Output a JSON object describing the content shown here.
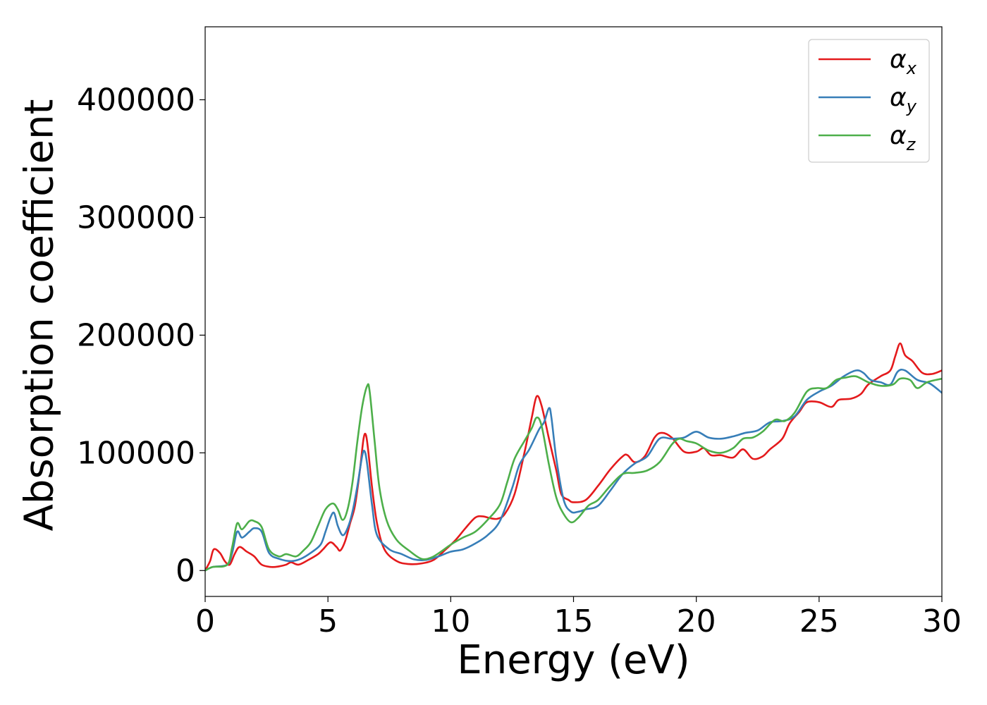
{
  "chart_data": {
    "type": "line",
    "title": "",
    "xlabel": "Energy (eV)",
    "ylabel": "Absorption coefficient",
    "xlim": [
      0,
      30
    ],
    "ylim": [
      -22000,
      462000
    ],
    "xticks": [
      0,
      5,
      10,
      15,
      20,
      25,
      30
    ],
    "yticks": [
      0,
      100000,
      200000,
      300000,
      400000
    ],
    "xtick_labels": [
      "0",
      "5",
      "10",
      "15",
      "20",
      "25",
      "30"
    ],
    "ytick_labels": [
      "0",
      "100000",
      "200000",
      "300000",
      "400000"
    ],
    "grid": false,
    "legend_position": "top-right",
    "series": [
      {
        "name": "α",
        "subscript": "x",
        "color": "#e41a1c",
        "points": [
          [
            0,
            0
          ],
          [
            0.2,
            8000
          ],
          [
            0.35,
            18000
          ],
          [
            0.6,
            15000
          ],
          [
            0.8,
            8000
          ],
          [
            1.0,
            5000
          ],
          [
            1.2,
            14000
          ],
          [
            1.4,
            20000
          ],
          [
            1.7,
            16000
          ],
          [
            2.0,
            12000
          ],
          [
            2.3,
            5000
          ],
          [
            2.7,
            3000
          ],
          [
            3.0,
            3500
          ],
          [
            3.3,
            5000
          ],
          [
            3.5,
            7000
          ],
          [
            3.8,
            5000
          ],
          [
            4.2,
            9000
          ],
          [
            4.6,
            14000
          ],
          [
            4.8,
            18000
          ],
          [
            5.1,
            24000
          ],
          [
            5.35,
            20000
          ],
          [
            5.5,
            17000
          ],
          [
            5.7,
            25000
          ],
          [
            5.9,
            40000
          ],
          [
            6.1,
            55000
          ],
          [
            6.3,
            85000
          ],
          [
            6.45,
            112000
          ],
          [
            6.55,
            115000
          ],
          [
            6.65,
            100000
          ],
          [
            6.8,
            70000
          ],
          [
            7.0,
            40000
          ],
          [
            7.3,
            18000
          ],
          [
            7.8,
            8000
          ],
          [
            8.3,
            5500
          ],
          [
            8.8,
            6000
          ],
          [
            9.3,
            9000
          ],
          [
            9.8,
            18000
          ],
          [
            10.2,
            26000
          ],
          [
            10.6,
            36000
          ],
          [
            11.0,
            45000
          ],
          [
            11.3,
            46000
          ],
          [
            11.6,
            44500
          ],
          [
            11.9,
            44000
          ],
          [
            12.2,
            48000
          ],
          [
            12.6,
            65000
          ],
          [
            13.0,
            100000
          ],
          [
            13.3,
            130000
          ],
          [
            13.5,
            148000
          ],
          [
            13.7,
            140000
          ],
          [
            14.0,
            112000
          ],
          [
            14.3,
            85000
          ],
          [
            14.5,
            65000
          ],
          [
            14.8,
            60000
          ],
          [
            15.0,
            58000
          ],
          [
            15.5,
            60000
          ],
          [
            16.0,
            72000
          ],
          [
            16.5,
            86000
          ],
          [
            17.0,
            97000
          ],
          [
            17.2,
            98000
          ],
          [
            17.5,
            92000
          ],
          [
            17.9,
            97000
          ],
          [
            18.3,
            113000
          ],
          [
            18.6,
            117000
          ],
          [
            19.0,
            113000
          ],
          [
            19.5,
            101000
          ],
          [
            20.0,
            101000
          ],
          [
            20.3,
            104000
          ],
          [
            20.6,
            98000
          ],
          [
            21.0,
            98000
          ],
          [
            21.5,
            96000
          ],
          [
            21.9,
            103000
          ],
          [
            22.3,
            95000
          ],
          [
            22.7,
            97000
          ],
          [
            23.0,
            103000
          ],
          [
            23.5,
            112000
          ],
          [
            23.8,
            125000
          ],
          [
            24.2,
            135000
          ],
          [
            24.5,
            143000
          ],
          [
            25.0,
            143000
          ],
          [
            25.5,
            139000
          ],
          [
            25.8,
            145000
          ],
          [
            26.3,
            146000
          ],
          [
            26.7,
            150000
          ],
          [
            27.0,
            158000
          ],
          [
            27.5,
            165000
          ],
          [
            27.9,
            170000
          ],
          [
            28.1,
            182000
          ],
          [
            28.3,
            193000
          ],
          [
            28.5,
            183000
          ],
          [
            28.8,
            178000
          ],
          [
            29.2,
            168000
          ],
          [
            29.6,
            167000
          ],
          [
            30.0,
            170000
          ]
        ]
      },
      {
        "name": "α",
        "subscript": "y",
        "color": "#377eb8",
        "points": [
          [
            0,
            0
          ],
          [
            0.3,
            3000
          ],
          [
            0.9,
            5000
          ],
          [
            1.1,
            15000
          ],
          [
            1.3,
            33000
          ],
          [
            1.5,
            28000
          ],
          [
            1.8,
            33000
          ],
          [
            2.0,
            36000
          ],
          [
            2.3,
            33000
          ],
          [
            2.6,
            15000
          ],
          [
            3.0,
            10000
          ],
          [
            3.5,
            8000
          ],
          [
            3.9,
            10000
          ],
          [
            4.3,
            15000
          ],
          [
            4.7,
            22000
          ],
          [
            4.9,
            33000
          ],
          [
            5.1,
            45000
          ],
          [
            5.25,
            49000
          ],
          [
            5.4,
            38000
          ],
          [
            5.6,
            30000
          ],
          [
            5.8,
            36000
          ],
          [
            6.0,
            50000
          ],
          [
            6.2,
            72000
          ],
          [
            6.4,
            98000
          ],
          [
            6.5,
            101000
          ],
          [
            6.6,
            90000
          ],
          [
            6.8,
            55000
          ],
          [
            7.0,
            30000
          ],
          [
            7.5,
            18000
          ],
          [
            8.0,
            14000
          ],
          [
            8.5,
            9500
          ],
          [
            9.0,
            9000
          ],
          [
            9.5,
            12000
          ],
          [
            10.0,
            16000
          ],
          [
            10.5,
            18000
          ],
          [
            11.0,
            23000
          ],
          [
            11.5,
            30000
          ],
          [
            12.0,
            42000
          ],
          [
            12.5,
            70000
          ],
          [
            12.8,
            90000
          ],
          [
            13.2,
            103000
          ],
          [
            13.6,
            120000
          ],
          [
            13.8,
            126000
          ],
          [
            14.0,
            138000
          ],
          [
            14.1,
            130000
          ],
          [
            14.3,
            95000
          ],
          [
            14.6,
            60000
          ],
          [
            14.9,
            50000
          ],
          [
            15.2,
            50000
          ],
          [
            15.5,
            52000
          ],
          [
            16.0,
            55000
          ],
          [
            16.5,
            68000
          ],
          [
            17.0,
            82000
          ],
          [
            17.5,
            91000
          ],
          [
            18.0,
            97000
          ],
          [
            18.5,
            112000
          ],
          [
            19.0,
            112000
          ],
          [
            19.5,
            113000
          ],
          [
            20.0,
            118000
          ],
          [
            20.5,
            113000
          ],
          [
            21.0,
            112000
          ],
          [
            21.5,
            114000
          ],
          [
            22.0,
            117000
          ],
          [
            22.5,
            119000
          ],
          [
            23.0,
            126000
          ],
          [
            23.5,
            127000
          ],
          [
            24.0,
            131000
          ],
          [
            24.5,
            145000
          ],
          [
            25.0,
            152000
          ],
          [
            25.5,
            157000
          ],
          [
            26.0,
            165000
          ],
          [
            26.5,
            170000
          ],
          [
            26.8,
            168000
          ],
          [
            27.1,
            162000
          ],
          [
            27.5,
            160000
          ],
          [
            27.9,
            158000
          ],
          [
            28.2,
            169000
          ],
          [
            28.5,
            170000
          ],
          [
            29.0,
            162000
          ],
          [
            29.5,
            159000
          ],
          [
            30.0,
            151000
          ]
        ]
      },
      {
        "name": "α",
        "subscript": "z",
        "color": "#4daf4a",
        "points": [
          [
            0,
            0
          ],
          [
            0.3,
            3000
          ],
          [
            0.9,
            5000
          ],
          [
            1.1,
            20000
          ],
          [
            1.3,
            40000
          ],
          [
            1.5,
            35000
          ],
          [
            1.8,
            42000
          ],
          [
            2.0,
            42000
          ],
          [
            2.3,
            37000
          ],
          [
            2.6,
            18000
          ],
          [
            3.0,
            12000
          ],
          [
            3.3,
            14000
          ],
          [
            3.7,
            12000
          ],
          [
            4.0,
            17000
          ],
          [
            4.3,
            24000
          ],
          [
            4.6,
            38000
          ],
          [
            4.9,
            52000
          ],
          [
            5.2,
            57000
          ],
          [
            5.4,
            52000
          ],
          [
            5.6,
            43000
          ],
          [
            5.8,
            52000
          ],
          [
            6.0,
            75000
          ],
          [
            6.2,
            110000
          ],
          [
            6.4,
            140000
          ],
          [
            6.6,
            157000
          ],
          [
            6.7,
            152000
          ],
          [
            6.9,
            110000
          ],
          [
            7.1,
            70000
          ],
          [
            7.4,
            42000
          ],
          [
            7.8,
            26000
          ],
          [
            8.3,
            17000
          ],
          [
            8.8,
            10000
          ],
          [
            9.2,
            11000
          ],
          [
            9.6,
            16000
          ],
          [
            10.0,
            22000
          ],
          [
            10.5,
            28000
          ],
          [
            11.0,
            33000
          ],
          [
            11.5,
            43000
          ],
          [
            12.0,
            56000
          ],
          [
            12.3,
            75000
          ],
          [
            12.6,
            95000
          ],
          [
            13.0,
            110000
          ],
          [
            13.3,
            121000
          ],
          [
            13.5,
            130000
          ],
          [
            13.7,
            123000
          ],
          [
            14.0,
            90000
          ],
          [
            14.3,
            62000
          ],
          [
            14.6,
            48000
          ],
          [
            14.9,
            41000
          ],
          [
            15.2,
            45000
          ],
          [
            15.6,
            55000
          ],
          [
            16.0,
            60000
          ],
          [
            16.5,
            72000
          ],
          [
            17.0,
            82000
          ],
          [
            17.5,
            83000
          ],
          [
            18.0,
            85000
          ],
          [
            18.5,
            92000
          ],
          [
            19.0,
            107000
          ],
          [
            19.3,
            112000
          ],
          [
            19.6,
            110000
          ],
          [
            20.0,
            108000
          ],
          [
            20.5,
            102000
          ],
          [
            21.0,
            100000
          ],
          [
            21.5,
            104000
          ],
          [
            21.9,
            112000
          ],
          [
            22.3,
            113000
          ],
          [
            22.7,
            118000
          ],
          [
            23.2,
            128000
          ],
          [
            23.6,
            127000
          ],
          [
            24.0,
            134000
          ],
          [
            24.5,
            152000
          ],
          [
            24.9,
            155000
          ],
          [
            25.3,
            155000
          ],
          [
            25.7,
            162000
          ],
          [
            26.1,
            164000
          ],
          [
            26.5,
            165000
          ],
          [
            27.0,
            160000
          ],
          [
            27.5,
            157000
          ],
          [
            28.0,
            158000
          ],
          [
            28.3,
            163000
          ],
          [
            28.7,
            162000
          ],
          [
            29.0,
            155000
          ],
          [
            29.4,
            160000
          ],
          [
            30.0,
            163000
          ]
        ]
      }
    ]
  }
}
